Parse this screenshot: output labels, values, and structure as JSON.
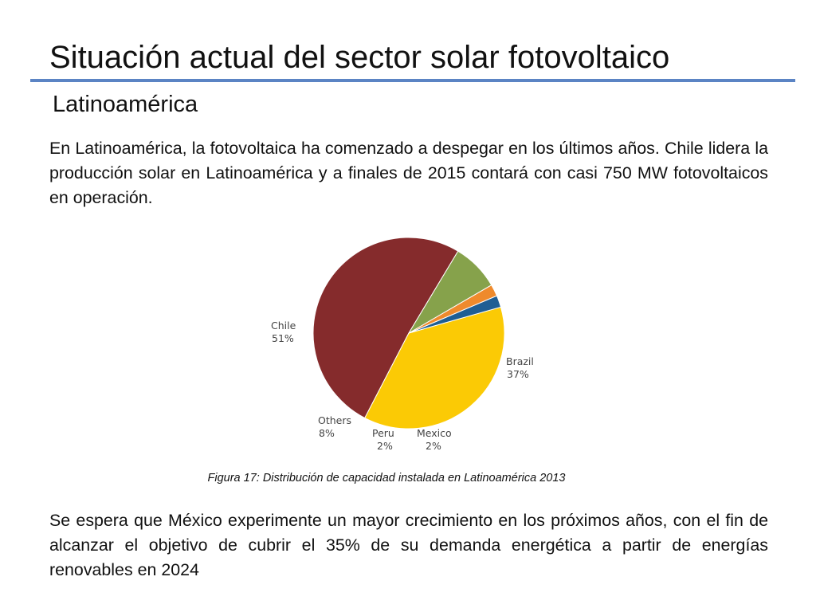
{
  "slide": {
    "title": "Situación actual del sector solar fotovoltaico",
    "subtitle": "Latinoamérica",
    "paragraph_1": "En Latinoamérica, la fotovoltaica ha comenzado a despegar en los últimos años. Chile lidera la producción solar en Latinoamérica y a finales de 2015 contará con casi 750 MW fotovoltaicos en operación.",
    "caption": "Figura 17: Distribución de capacidad instalada en Latinoamérica 2013",
    "paragraph_2": "Se espera que México experimente un mayor crecimiento en los próximos años, con el fin de alcanzar el objetivo de cubrir el 35% de su demanda energética a partir de energías renovables en 2024",
    "colors": {
      "title_rule": "#5b84c4"
    }
  },
  "chart_data": {
    "type": "pie",
    "slices": [
      {
        "label": "Chile",
        "value": 51,
        "display": "51%",
        "color": "#852b2c"
      },
      {
        "label": "Brazil",
        "value": 37,
        "display": "37%",
        "color": "#fbca05"
      },
      {
        "label": "Mexico",
        "value": 2,
        "display": "2%",
        "color": "#1f5e94"
      },
      {
        "label": "Peru",
        "value": 2,
        "display": "2%",
        "color": "#ef8a2c"
      },
      {
        "label": "Others",
        "value": 8,
        "display": "8%",
        "color": "#86a24b"
      }
    ]
  }
}
